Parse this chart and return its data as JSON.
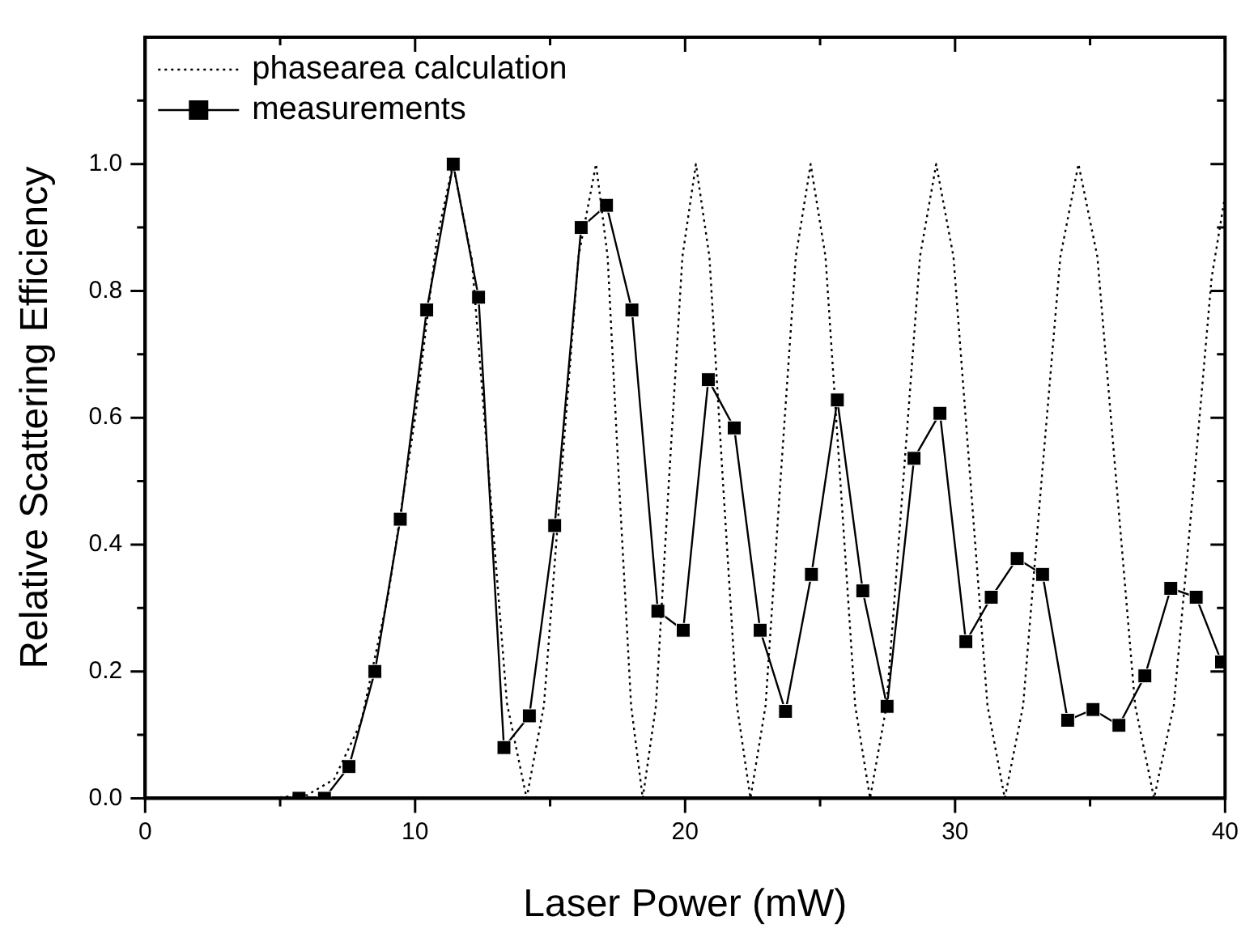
{
  "chart_data": {
    "type": "line",
    "xlabel": "Laser Power (mW)",
    "ylabel": "Relative Scattering Efficiency",
    "xlim": [
      0,
      40
    ],
    "xticks": [
      0,
      {
        "value": 5,
        "label": null
      },
      10,
      {
        "value": 15,
        "label": null
      },
      20,
      {
        "value": 25,
        "label": null
      },
      30,
      {
        "value": 35,
        "label": null
      },
      40
    ],
    "ylim": [
      0,
      1.2
    ],
    "yticks": [
      {
        "value": 0,
        "label": "0.0"
      },
      {
        "value": 0.1,
        "label": null
      },
      0.2,
      {
        "value": 0.3,
        "label": null
      },
      0.4,
      {
        "value": 0.5,
        "label": null
      },
      0.6,
      {
        "value": 0.7,
        "label": null
      },
      0.8,
      {
        "value": 0.9,
        "label": null
      },
      {
        "value": 1,
        "label": "1.0"
      },
      {
        "value": 1.1,
        "label": null
      }
    ],
    "grid": false,
    "legend": "top left",
    "series": [
      {
        "name": "phasearea calculation",
        "color": "#000000",
        "line_style": "dotted",
        "marker": "none",
        "x": [
          4.5,
          6,
          7,
          8,
          9,
          10,
          10.8,
          11.4,
          12.1,
          12.75,
          13.4,
          14.13,
          14.77,
          15.4,
          16.05,
          16.7,
          17.13,
          17.55,
          18,
          18.43,
          18.92,
          19.4,
          19.9,
          20.4,
          20.9,
          21.4,
          21.92,
          22.42,
          22.98,
          23.53,
          24.1,
          24.65,
          25.2,
          25.75,
          26.3,
          26.85,
          27.46,
          28.08,
          28.7,
          29.3,
          29.94,
          30.57,
          31.2,
          31.84,
          32.52,
          33.2,
          33.9,
          34.57,
          35.27,
          35.97,
          36.67,
          37.37,
          38.1,
          38.85,
          39.5,
          40
        ],
        "values": [
          0,
          0.005,
          0.03,
          0.12,
          0.32,
          0.6,
          0.88,
          1,
          0.85,
          0.5,
          0.15,
          0,
          0.146,
          0.5,
          0.854,
          1,
          0.854,
          0.5,
          0.146,
          0,
          0.146,
          0.5,
          0.854,
          1,
          0.854,
          0.5,
          0.146,
          0,
          0.146,
          0.5,
          0.854,
          1,
          0.854,
          0.5,
          0.146,
          0,
          0.146,
          0.5,
          0.854,
          1,
          0.854,
          0.5,
          0.146,
          0,
          0.146,
          0.5,
          0.854,
          1,
          0.854,
          0.5,
          0.146,
          0,
          0.146,
          0.5,
          0.82,
          0.95
        ]
      },
      {
        "name": "measurements",
        "color": "#000000",
        "line_style": "solid",
        "marker": "square",
        "x": [
          5.7,
          6.64,
          7.55,
          8.51,
          9.45,
          10.43,
          11.41,
          12.35,
          13.29,
          14.23,
          15.17,
          16.15,
          17.09,
          18.03,
          18.99,
          19.93,
          20.86,
          21.82,
          22.78,
          23.72,
          24.68,
          25.64,
          26.58,
          27.48,
          28.48,
          29.44,
          30.4,
          31.34,
          32.3,
          33.24,
          34.17,
          35.11,
          36.07,
          37.03,
          37.99,
          38.93,
          39.87
        ],
        "values": [
          0,
          0,
          0.05,
          0.2,
          0.44,
          0.77,
          1,
          0.79,
          0.08,
          0.13,
          0.43,
          0.9,
          0.935,
          0.77,
          0.295,
          0.265,
          0.66,
          0.584,
          0.265,
          0.137,
          0.353,
          0.628,
          0.327,
          0.145,
          0.536,
          0.607,
          0.247,
          0.317,
          0.378,
          0.353,
          0.123,
          0.14,
          0.115,
          0.193,
          0.331,
          0.317,
          0.215
        ]
      }
    ]
  }
}
